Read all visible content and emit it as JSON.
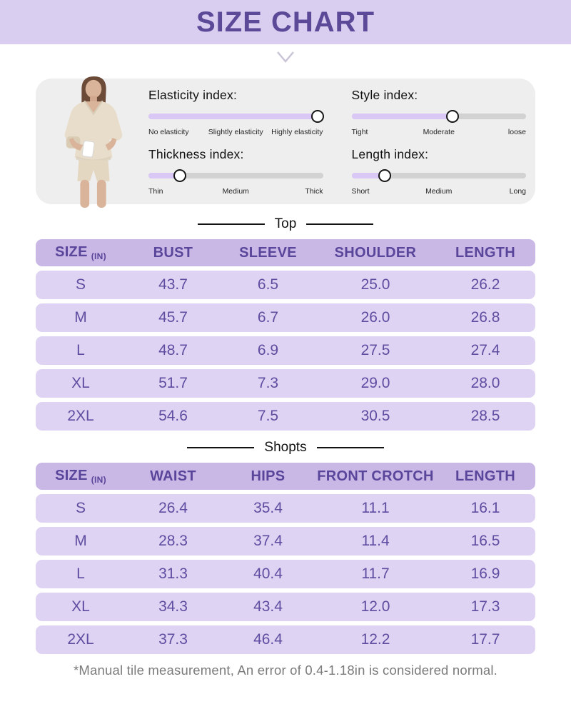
{
  "colors": {
    "band_bg": "#d9cdf0",
    "title_purple": "#5c4a99",
    "card_bg": "#efeeee",
    "slider_track": "#d2d2d2",
    "slider_fill": "#d9c8f5",
    "table_header_bg": "#c9b8e6",
    "table_row_bg": "#ded3f2",
    "table_header_text": "#59459a",
    "table_row_text": "#5e4da0",
    "footer_text": "#7b7b7b"
  },
  "header": {
    "title": "SIZE CHART"
  },
  "card": {
    "indexes": [
      {
        "id": "elasticity",
        "label": "Elasticity index:",
        "value": 97,
        "ticks": [
          "No elasticity",
          "Slightly elasticity",
          "Highly elasticity"
        ]
      },
      {
        "id": "style",
        "label": "Style index:",
        "value": 58,
        "ticks": [
          "Tight",
          "Moderate",
          "loose"
        ]
      },
      {
        "id": "thickness",
        "label": "Thickness index:",
        "value": 18,
        "ticks": [
          "Thin",
          "Medium",
          "Thick"
        ]
      },
      {
        "id": "length",
        "label": "Length index:",
        "value": 19,
        "ticks": [
          "Short",
          "Medium",
          "Long"
        ]
      }
    ]
  },
  "sections": [
    {
      "title": "Top",
      "table": {
        "unit": "(IN)",
        "headers": [
          "SIZE",
          "BUST",
          "SLEEVE",
          "SHOULDER",
          "LENGTH"
        ],
        "rows": [
          [
            "S",
            "43.7",
            "6.5",
            "25.0",
            "26.2"
          ],
          [
            "M",
            "45.7",
            "6.7",
            "26.0",
            "26.8"
          ],
          [
            "L",
            "48.7",
            "6.9",
            "27.5",
            "27.4"
          ],
          [
            "XL",
            "51.7",
            "7.3",
            "29.0",
            "28.0"
          ],
          [
            "2XL",
            "54.6",
            "7.5",
            "30.5",
            "28.5"
          ]
        ]
      }
    },
    {
      "title": "Shopts",
      "table": {
        "unit": "(IN)",
        "headers": [
          "SIZE",
          "WAIST",
          "HIPS",
          "FRONT CROTCH",
          "LENGTH"
        ],
        "rows": [
          [
            "S",
            "26.4",
            "35.4",
            "11.1",
            "16.1"
          ],
          [
            "M",
            "28.3",
            "37.4",
            "11.4",
            "16.5"
          ],
          [
            "L",
            "31.3",
            "40.4",
            "11.7",
            "16.9"
          ],
          [
            "XL",
            "34.3",
            "43.4",
            "12.0",
            "17.3"
          ],
          [
            "2XL",
            "37.3",
            "46.4",
            "12.2",
            "17.7"
          ]
        ]
      }
    }
  ],
  "footer": {
    "note": "*Manual tile measurement, An error of 0.4-1.18in is considered normal."
  }
}
